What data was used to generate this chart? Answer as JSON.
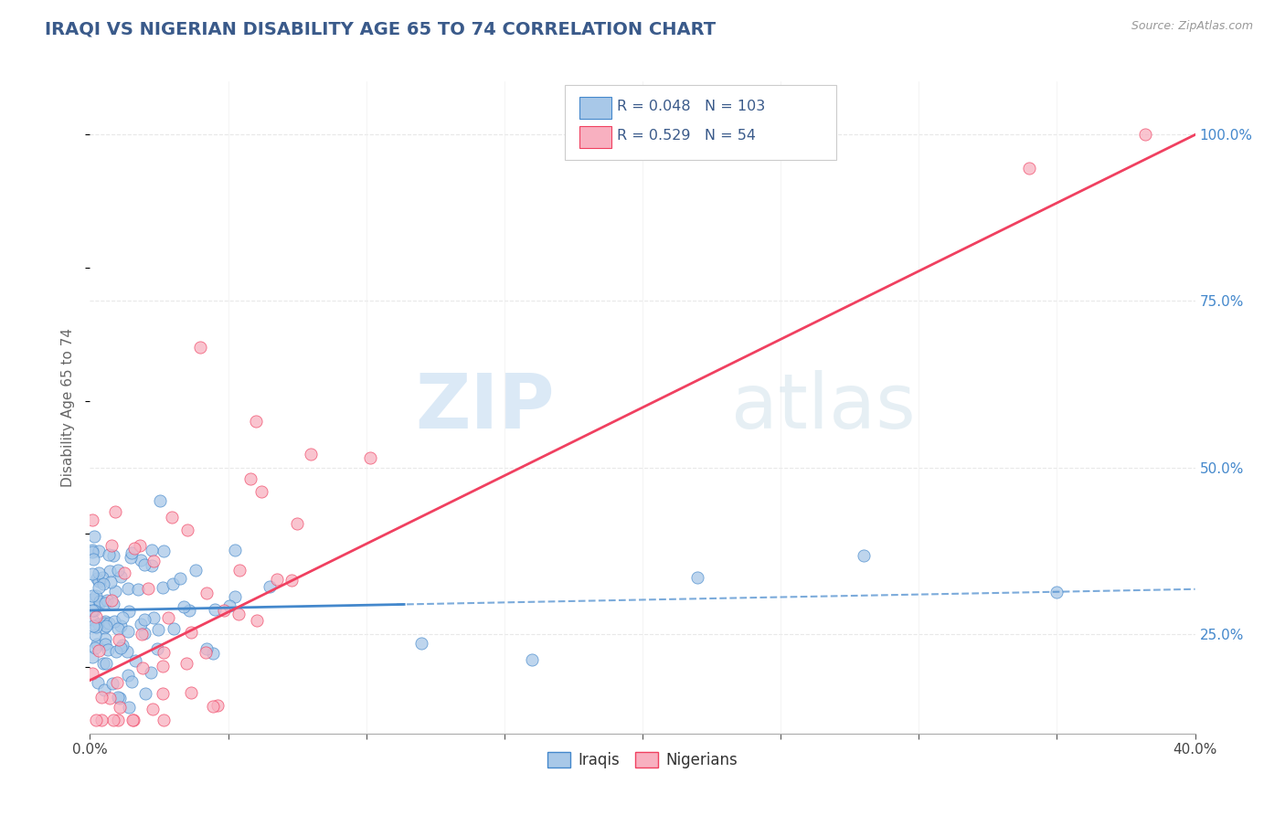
{
  "title": "IRAQI VS NIGERIAN DISABILITY AGE 65 TO 74 CORRELATION CHART",
  "source_text": "Source: ZipAtlas.com",
  "ylabel": "Disability Age 65 to 74",
  "xlim": [
    0.0,
    0.4
  ],
  "ylim": [
    0.1,
    1.08
  ],
  "ytick_vals_right": [
    0.25,
    0.5,
    0.75,
    1.0
  ],
  "title_color": "#3a5a8a",
  "title_fontsize": 14,
  "grid_color": "#e8e8e8",
  "source_color": "#999999",
  "iraqi_color": "#a8c8e8",
  "nigerian_color": "#f8b0c0",
  "iraqi_line_color": "#4488cc",
  "nigerian_line_color": "#f04060",
  "legend_text_color": "#3a5a8a",
  "R_iraqi": 0.048,
  "N_iraqi": 103,
  "R_nigerian": 0.529,
  "N_nigerian": 54,
  "watermark_zip": "ZIP",
  "watermark_atlas": "atlas",
  "iraqi_trendline_intercept": 0.285,
  "iraqi_trendline_slope": 0.08,
  "nigerian_trendline_intercept": 0.18,
  "nigerian_trendline_slope": 2.05
}
